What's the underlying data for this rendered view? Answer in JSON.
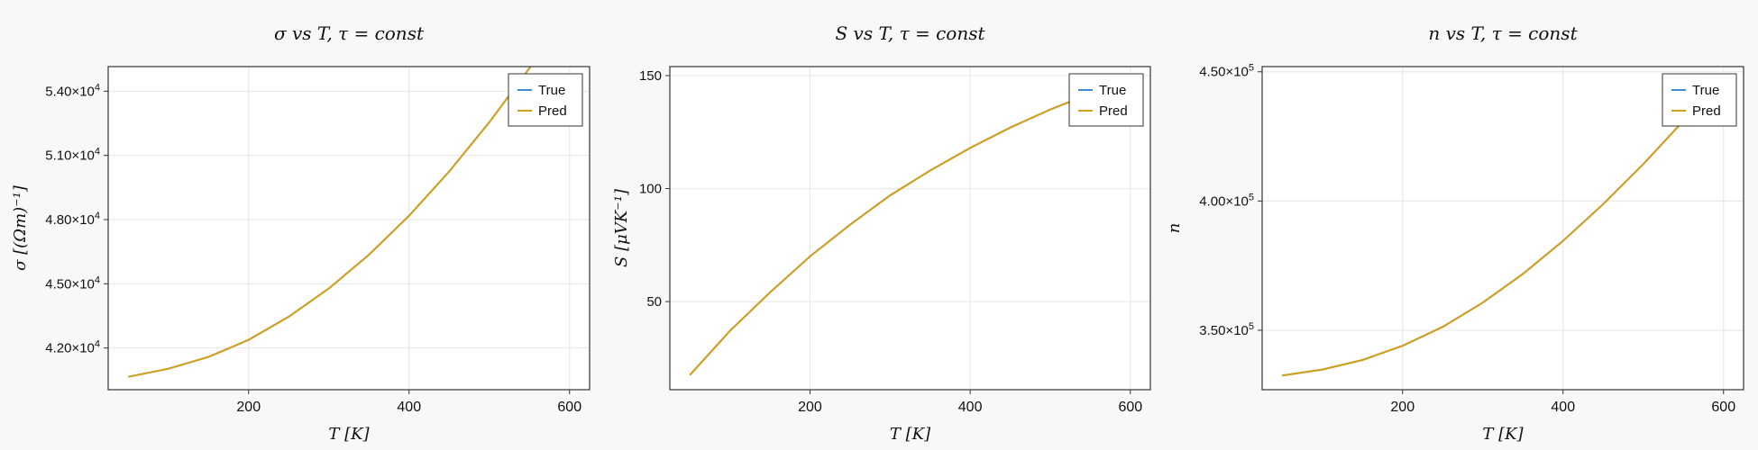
{
  "figure": {
    "background": "#f8f8f8",
    "panel_background": "#ffffff",
    "grid_color": "#e6e6e6",
    "axis_color": "#333333",
    "line_colors": {
      "True": "#3b8fd9",
      "Pred": "#d4a017"
    }
  },
  "chart_data": [
    {
      "type": "line",
      "title": "σ vs T, τ = const",
      "xlabel": "T [K]",
      "ylabel": "σ [(Ωm)⁻¹]",
      "xlim": [
        25,
        625
      ],
      "ylim": [
        40050,
        55150
      ],
      "xticks": [
        200,
        400,
        600
      ],
      "xticklabels": [
        "200",
        "400",
        "600"
      ],
      "yticks": [
        42000,
        45000,
        48000,
        51000,
        54000
      ],
      "yticklabels": [
        {
          "mantissa": "4.20×10",
          "exp": "4"
        },
        {
          "mantissa": "4.50×10",
          "exp": "4"
        },
        {
          "mantissa": "4.80×10",
          "exp": "4"
        },
        {
          "mantissa": "5.10×10",
          "exp": "4"
        },
        {
          "mantissa": "5.40×10",
          "exp": "4"
        }
      ],
      "grid": true,
      "legend": "top-right",
      "x": [
        50,
        100,
        150,
        200,
        250,
        300,
        350,
        400,
        450,
        500,
        550,
        575
      ],
      "series": [
        {
          "name": "True",
          "values": [
            40650,
            41030,
            41580,
            42380,
            43460,
            44780,
            46360,
            48180,
            50250,
            52550,
            55080,
            56450
          ]
        },
        {
          "name": "Pred",
          "values": [
            40650,
            41030,
            41580,
            42380,
            43460,
            44780,
            46360,
            48180,
            50250,
            52550,
            55080,
            56450
          ]
        }
      ]
    },
    {
      "type": "line",
      "title": "S vs T, τ = const",
      "xlabel": "T [K]",
      "ylabel": "S [μVK⁻¹]",
      "xlim": [
        25,
        625
      ],
      "ylim": [
        11,
        154
      ],
      "xticks": [
        200,
        400,
        600
      ],
      "xticklabels": [
        "200",
        "400",
        "600"
      ],
      "yticks": [
        50,
        100,
        150
      ],
      "yticklabels": [
        {
          "mantissa": "50",
          "exp": ""
        },
        {
          "mantissa": "100",
          "exp": ""
        },
        {
          "mantissa": "150",
          "exp": ""
        }
      ],
      "grid": true,
      "legend": "top-right",
      "x": [
        50,
        100,
        150,
        200,
        250,
        300,
        350,
        400,
        450,
        500,
        550,
        575
      ],
      "series": [
        {
          "name": "True",
          "values": [
            17.5,
            37,
            54,
            70,
            84,
            97,
            108,
            118,
            127,
            135,
            142,
            145
          ]
        },
        {
          "name": "Pred",
          "values": [
            17.5,
            37,
            54,
            70,
            84,
            97,
            108,
            118,
            127,
            135,
            142,
            145
          ]
        }
      ]
    },
    {
      "type": "line",
      "title": "n vs T, τ = const",
      "xlabel": "T [K]",
      "ylabel": "n",
      "xlim": [
        25,
        625
      ],
      "ylim": [
        327000,
        452000
      ],
      "xticks": [
        200,
        400,
        600
      ],
      "xticklabels": [
        "200",
        "400",
        "600"
      ],
      "yticks": [
        350000,
        400000,
        450000
      ],
      "yticklabels": [
        {
          "mantissa": "3.50×10",
          "exp": "5"
        },
        {
          "mantissa": "4.00×10",
          "exp": "5"
        },
        {
          "mantissa": "4.50×10",
          "exp": "5"
        }
      ],
      "grid": true,
      "legend": "top-right",
      "x": [
        50,
        100,
        150,
        200,
        250,
        300,
        350,
        400,
        450,
        500,
        550,
        575
      ],
      "series": [
        {
          "name": "True",
          "values": [
            332500,
            334800,
            338500,
            344000,
            351300,
            360700,
            371800,
            384600,
            398800,
            414300,
            431000,
            440000
          ]
        },
        {
          "name": "Pred",
          "values": [
            332500,
            334800,
            338500,
            344000,
            351300,
            360700,
            371800,
            384600,
            398800,
            414300,
            431000,
            440000
          ]
        }
      ]
    }
  ]
}
